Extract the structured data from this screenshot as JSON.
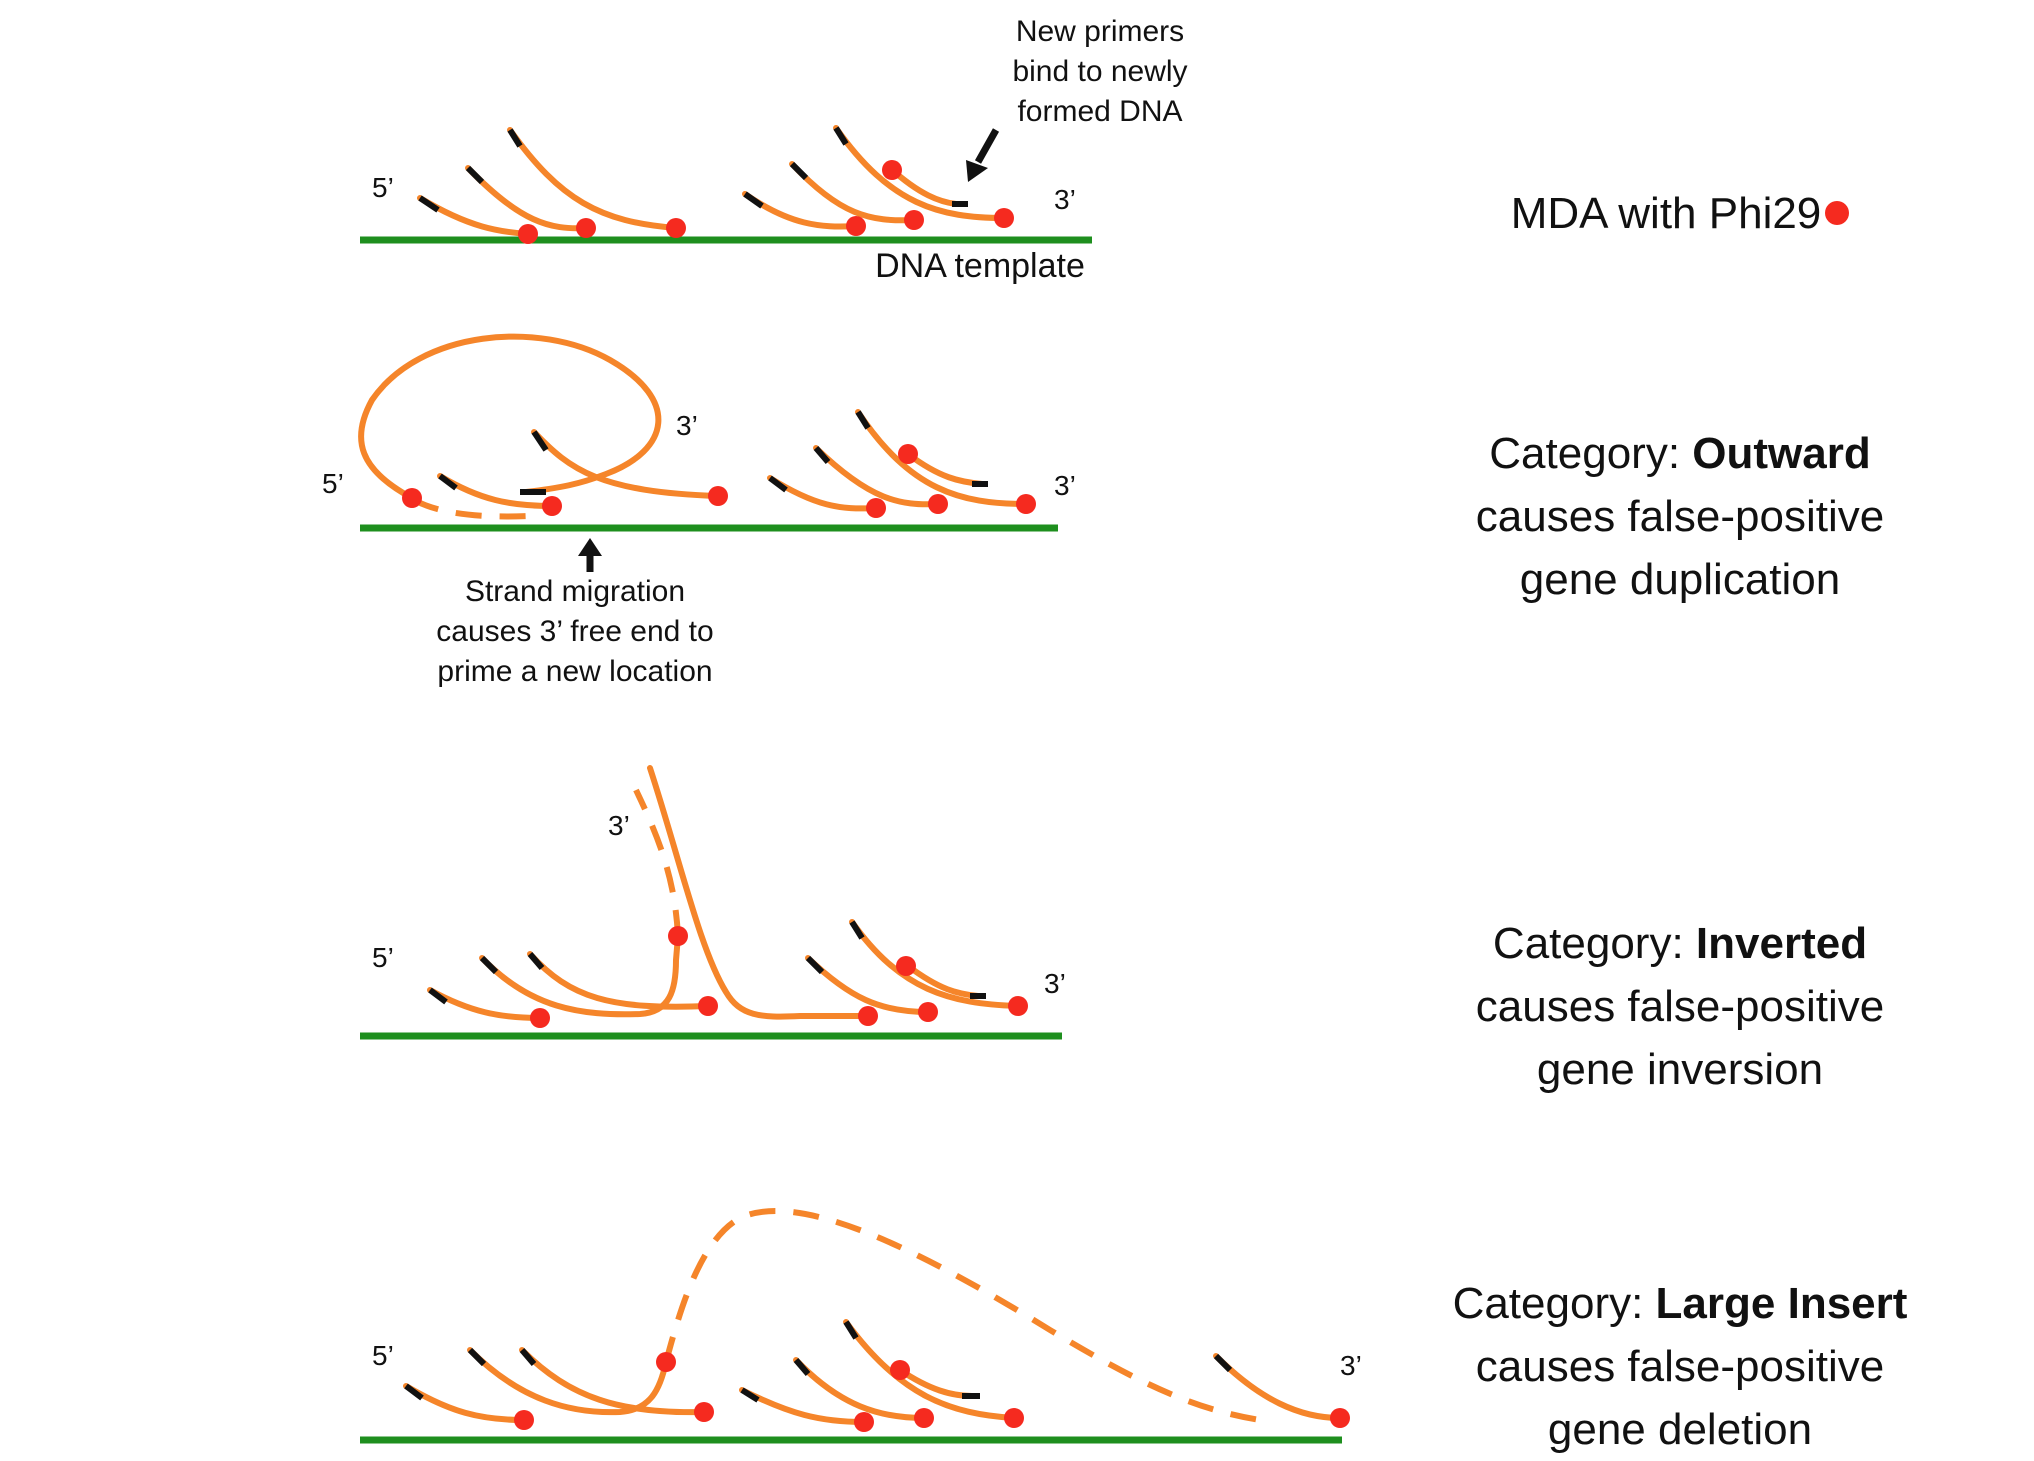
{
  "panel1": {
    "end5": "5’",
    "end3": "3’",
    "primer_note": [
      "New primers",
      "bind to newly",
      "formed DNA"
    ],
    "template_label": "DNA template",
    "title": "MDA with Phi29"
  },
  "panel2": {
    "end5": "5’",
    "end3_loop": "3’",
    "end3": "3’",
    "note": [
      "Strand migration",
      "causes 3’ free end to",
      "prime a new location"
    ],
    "category_prefix": "Category: ",
    "category_name": "Outward",
    "line2": "causes false-positive",
    "line3": "gene duplication"
  },
  "panel3": {
    "end5": "5’",
    "end3_top": "3’",
    "end3": "3’",
    "category_prefix": "Category: ",
    "category_name": "Inverted",
    "line2": "causes false-positive",
    "line3": "gene inversion"
  },
  "panel4": {
    "end5": "5’",
    "end3": "3’",
    "category_prefix": "Category: ",
    "category_name": "Large Insert",
    "line2": "causes false-positive",
    "line3": "gene deletion"
  },
  "colors": {
    "template": "#1e8f1e",
    "strand": "#f5852a",
    "polymerase": "#f52a1f",
    "primer": "#111111"
  }
}
